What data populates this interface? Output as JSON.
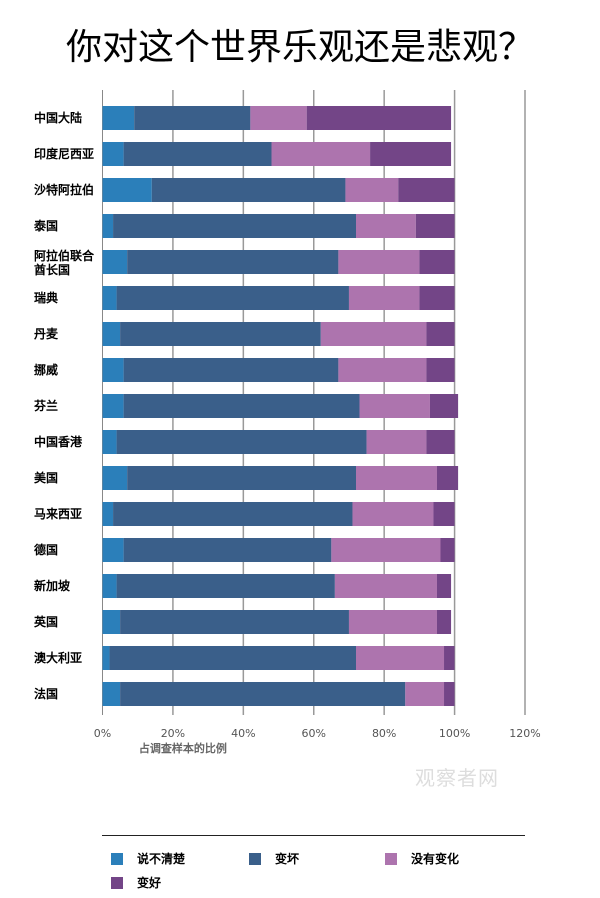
{
  "chart_data": {
    "type": "bar",
    "orientation": "horizontal",
    "stacked": true,
    "title": "你对这个世界乐观还是悲观？",
    "xlabel": "占调查样本的比例",
    "ylabel": "",
    "xlim": [
      0,
      120
    ],
    "xticks": [
      "0%",
      "20%",
      "40%",
      "60%",
      "80%",
      "100%",
      "120%"
    ],
    "grid": true,
    "legend_position": "bottom",
    "categories": [
      "中国大陆",
      "印度尼西亚",
      "沙特阿拉伯",
      "泰国",
      "阿拉伯联合酋长国",
      "瑞典",
      "丹麦",
      "挪威",
      "芬兰",
      "中国香港",
      "美国",
      "马来西亚",
      "德国",
      "新加坡",
      "英国",
      "澳大利亚",
      "法国"
    ],
    "category_lines": [
      [
        "中国大陆"
      ],
      [
        "印度尼西亚"
      ],
      [
        "沙特阿拉伯"
      ],
      [
        "泰国"
      ],
      [
        "阿拉伯联合",
        "酋长国"
      ],
      [
        "瑞典"
      ],
      [
        "丹麦"
      ],
      [
        "挪威"
      ],
      [
        "芬兰"
      ],
      [
        "中国香港"
      ],
      [
        "美国"
      ],
      [
        "马来西亚"
      ],
      [
        "德国"
      ],
      [
        "新加坡"
      ],
      [
        "英国"
      ],
      [
        "澳大利亚"
      ],
      [
        "法国"
      ]
    ],
    "series": [
      {
        "name": "说不清楚",
        "color": "#2b7fba",
        "values": [
          9,
          6,
          14,
          3,
          7,
          4,
          5,
          6,
          6,
          4,
          7,
          3,
          6,
          4,
          5,
          2,
          5
        ]
      },
      {
        "name": "变坏",
        "color": "#3a5f8a",
        "values": [
          33,
          42,
          55,
          69,
          60,
          66,
          57,
          61,
          67,
          71,
          65,
          68,
          59,
          62,
          65,
          70,
          81
        ]
      },
      {
        "name": "没有变化",
        "color": "#ad74ae",
        "values": [
          16,
          28,
          15,
          17,
          23,
          20,
          30,
          25,
          20,
          17,
          23,
          23,
          31,
          29,
          25,
          25,
          11
        ]
      },
      {
        "name": "变好",
        "color": "#734587",
        "values": [
          41,
          23,
          16,
          11,
          10,
          10,
          8,
          8,
          8,
          8,
          6,
          6,
          4,
          4,
          4,
          3,
          3
        ]
      }
    ]
  },
  "watermark": "观察者网"
}
